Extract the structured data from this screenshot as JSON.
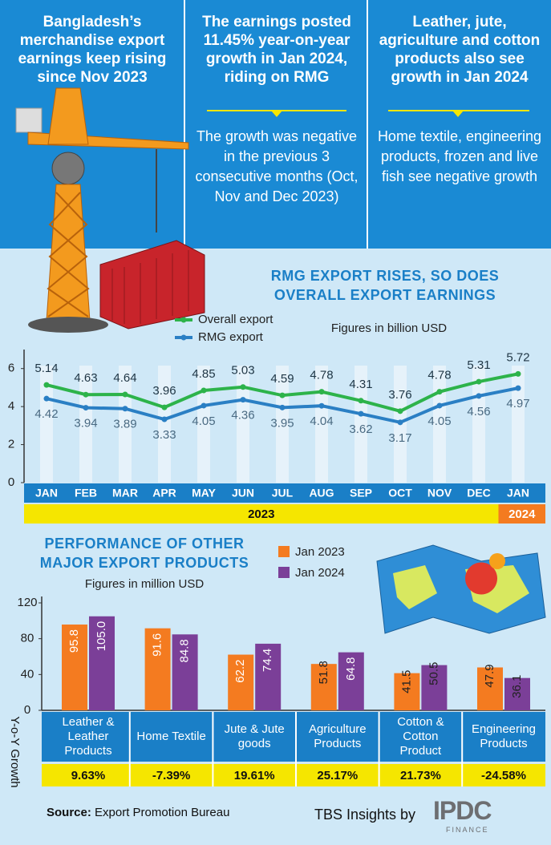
{
  "header": {
    "panels": [
      {
        "headline": "Bangladesh’s merchandise export earnings keep rising since Nov 2023"
      },
      {
        "headline": "The earnings posted 11.45% year-on-year growth in Jan 2024, riding on RMG",
        "detail": "The growth was negative in the previous 3 consecutive months (Oct, Nov and Dec 2023)"
      },
      {
        "headline": "Leather, jute, agriculture and cotton products also see growth in Jan 2024",
        "detail": "Home textile, engineering products, frozen and live fish see negative growth"
      }
    ]
  },
  "chart_data": [
    {
      "type": "line",
      "title": "RMG EXPORT RISES, SO DOES OVERALL EXPORT EARNINGS",
      "subtitle": "Figures in billion USD",
      "categories": [
        "JAN",
        "FEB",
        "MAR",
        "APR",
        "MAY",
        "JUN",
        "JUL",
        "AUG",
        "SEP",
        "OCT",
        "NOV",
        "DEC",
        "JAN"
      ],
      "year_labels": [
        "2023",
        "2024"
      ],
      "series": [
        {
          "name": "Overall export",
          "color": "#2db34a",
          "values": [
            5.14,
            4.63,
            4.64,
            3.96,
            4.85,
            5.03,
            4.59,
            4.78,
            4.31,
            3.76,
            4.78,
            5.31,
            5.72
          ]
        },
        {
          "name": "RMG export",
          "color": "#2a7fc4",
          "values": [
            4.42,
            3.94,
            3.89,
            3.33,
            4.05,
            4.36,
            3.95,
            4.04,
            3.62,
            3.17,
            4.05,
            4.56,
            4.97
          ]
        }
      ],
      "ylim": [
        0,
        7
      ],
      "yticks": [
        0,
        2,
        4,
        6
      ],
      "grid": false
    },
    {
      "type": "bar",
      "title": "PERFORMANCE OF OTHER MAJOR EXPORT PRODUCTS",
      "subtitle": "Figures in million USD",
      "categories": [
        "Leather & Leather Products",
        "Home Textile",
        "Jute & Jute goods",
        "Agriculture Products",
        "Cotton & Cotton Product",
        "Engineering Products"
      ],
      "series": [
        {
          "name": "Jan 2023",
          "color": "#f47b20",
          "values": [
            95.8,
            91.6,
            62.2,
            51.8,
            41.5,
            47.9
          ]
        },
        {
          "name": "Jan 2024",
          "color": "#7b3f98",
          "values": [
            105,
            84.8,
            74.4,
            64.8,
            50.5,
            36.1
          ],
          "value_labels": [
            "105.0",
            "84.8",
            "74.4",
            "64.8",
            "50.5",
            "36.1"
          ]
        }
      ],
      "growth": {
        "label": "Y-o-Y Growth",
        "values": [
          9.63,
          -7.39,
          19.61,
          25.17,
          21.73,
          -24.58
        ],
        "value_labels": [
          "9.63%",
          "-7.39%",
          "19.61%",
          "25.17%",
          "21.73%",
          "-24.58%"
        ]
      },
      "ylim": [
        0,
        120
      ],
      "yticks": [
        0,
        40,
        80,
        120
      ],
      "grid": false
    }
  ],
  "footer": {
    "source_label": "Source:",
    "source": "Export Promotion Bureau",
    "credit": "TBS Insights by",
    "logo": "IPDC",
    "logo_sub": "FINANCE"
  }
}
